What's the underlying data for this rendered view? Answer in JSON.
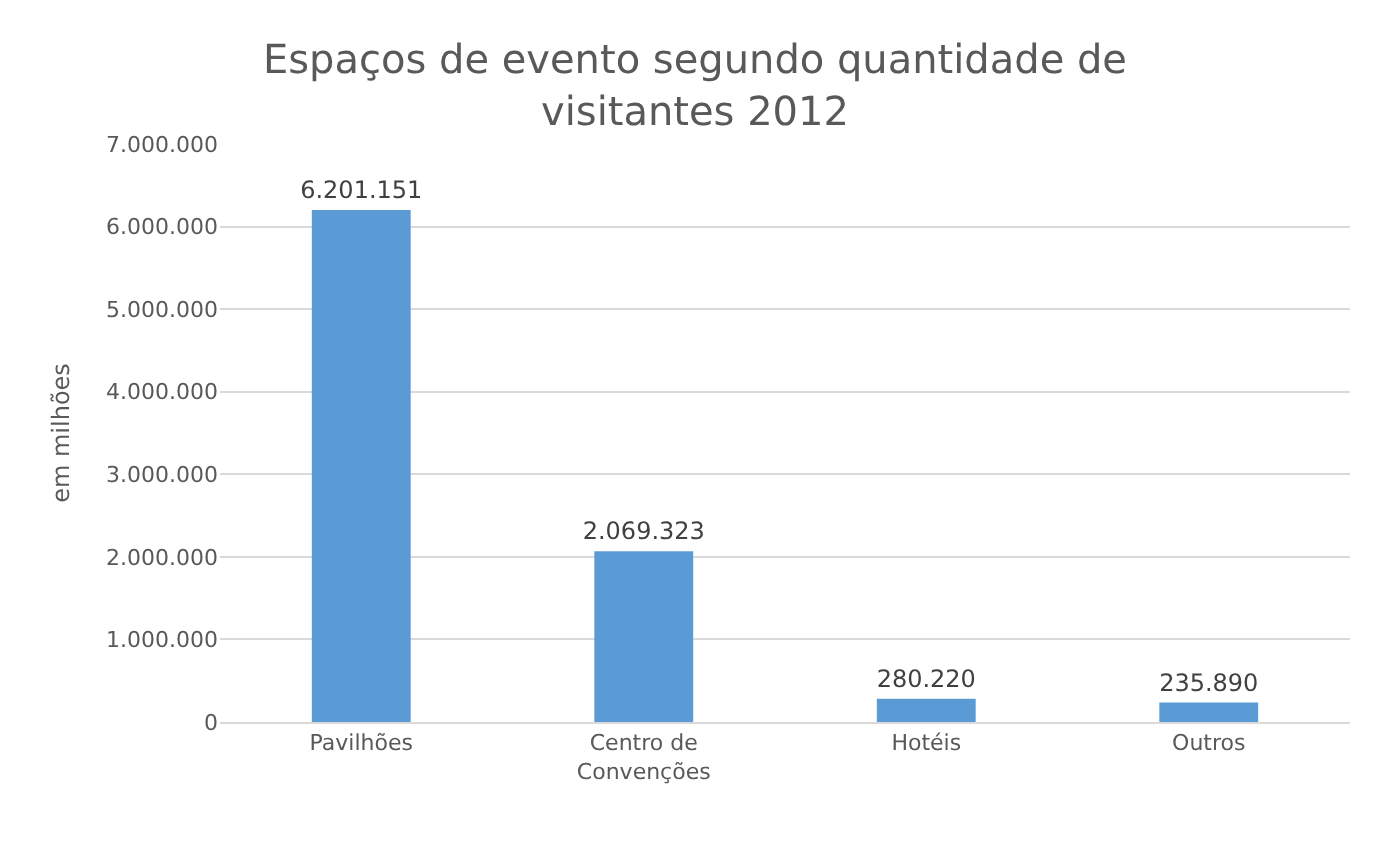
{
  "chart_data": {
    "type": "bar",
    "title": "Espaços de evento segundo quantidade de visitantes 2012",
    "ylabel": "em milhões",
    "categories": [
      "Pavilhões",
      "Centro de Convenções",
      "Hotéis",
      "Outros"
    ],
    "values": [
      6201151,
      2069323,
      280220,
      235890
    ],
    "value_labels": [
      "6.201.151",
      "2.069.323",
      "280.220",
      "235.890"
    ],
    "color": "#5b9bd5",
    "ylim": [
      0,
      7000000
    ],
    "yticks": [
      {
        "value": 0,
        "label": "0"
      },
      {
        "value": 1000000,
        "label": "1.000.000"
      },
      {
        "value": 2000000,
        "label": "2.000.000"
      },
      {
        "value": 3000000,
        "label": "3.000.000"
      },
      {
        "value": 4000000,
        "label": "4.000.000"
      },
      {
        "value": 5000000,
        "label": "5.000.000"
      },
      {
        "value": 6000000,
        "label": "6.000.000"
      },
      {
        "value": 7000000,
        "label": "7.000.000"
      }
    ],
    "grid": "y"
  }
}
